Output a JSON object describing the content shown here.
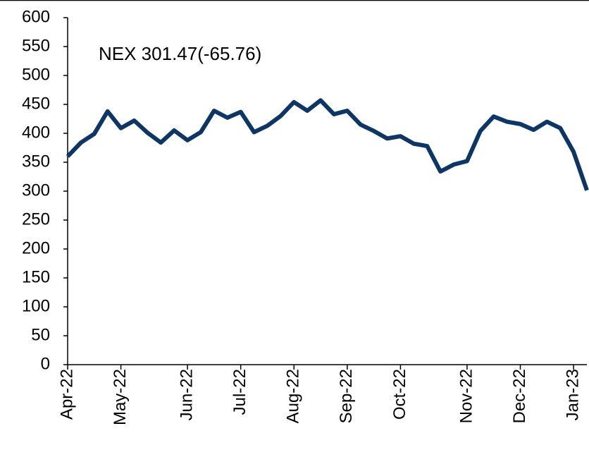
{
  "chart_data": {
    "type": "line",
    "annotation": "NEX 301.47(-65.76)",
    "categories": [
      "Apr-22",
      null,
      null,
      null,
      "May-22",
      null,
      null,
      null,
      null,
      "Jun-22",
      null,
      null,
      null,
      "Jul-22",
      null,
      null,
      null,
      "Aug-22",
      null,
      null,
      null,
      "Sep-22",
      null,
      null,
      null,
      "Oct-22",
      null,
      null,
      null,
      null,
      "Nov-22",
      null,
      null,
      null,
      "Dec-22",
      null,
      null,
      null,
      "Jan-23",
      null
    ],
    "series": [
      {
        "name": "NEX",
        "color": "#0d3565",
        "values": [
          360,
          384,
          399,
          438,
          409,
          422,
          401,
          384,
          405,
          388,
          402,
          439,
          427,
          437,
          402,
          413,
          430,
          454,
          439,
          457,
          433,
          439,
          415,
          404,
          391,
          395,
          382,
          378,
          334,
          346,
          352,
          404,
          429,
          420,
          416,
          406,
          420,
          409,
          368,
          301.47
        ]
      }
    ],
    "ylim": [
      0,
      600
    ],
    "yticks": [
      0,
      50,
      100,
      150,
      200,
      250,
      300,
      350,
      400,
      450,
      500,
      550,
      600
    ]
  }
}
